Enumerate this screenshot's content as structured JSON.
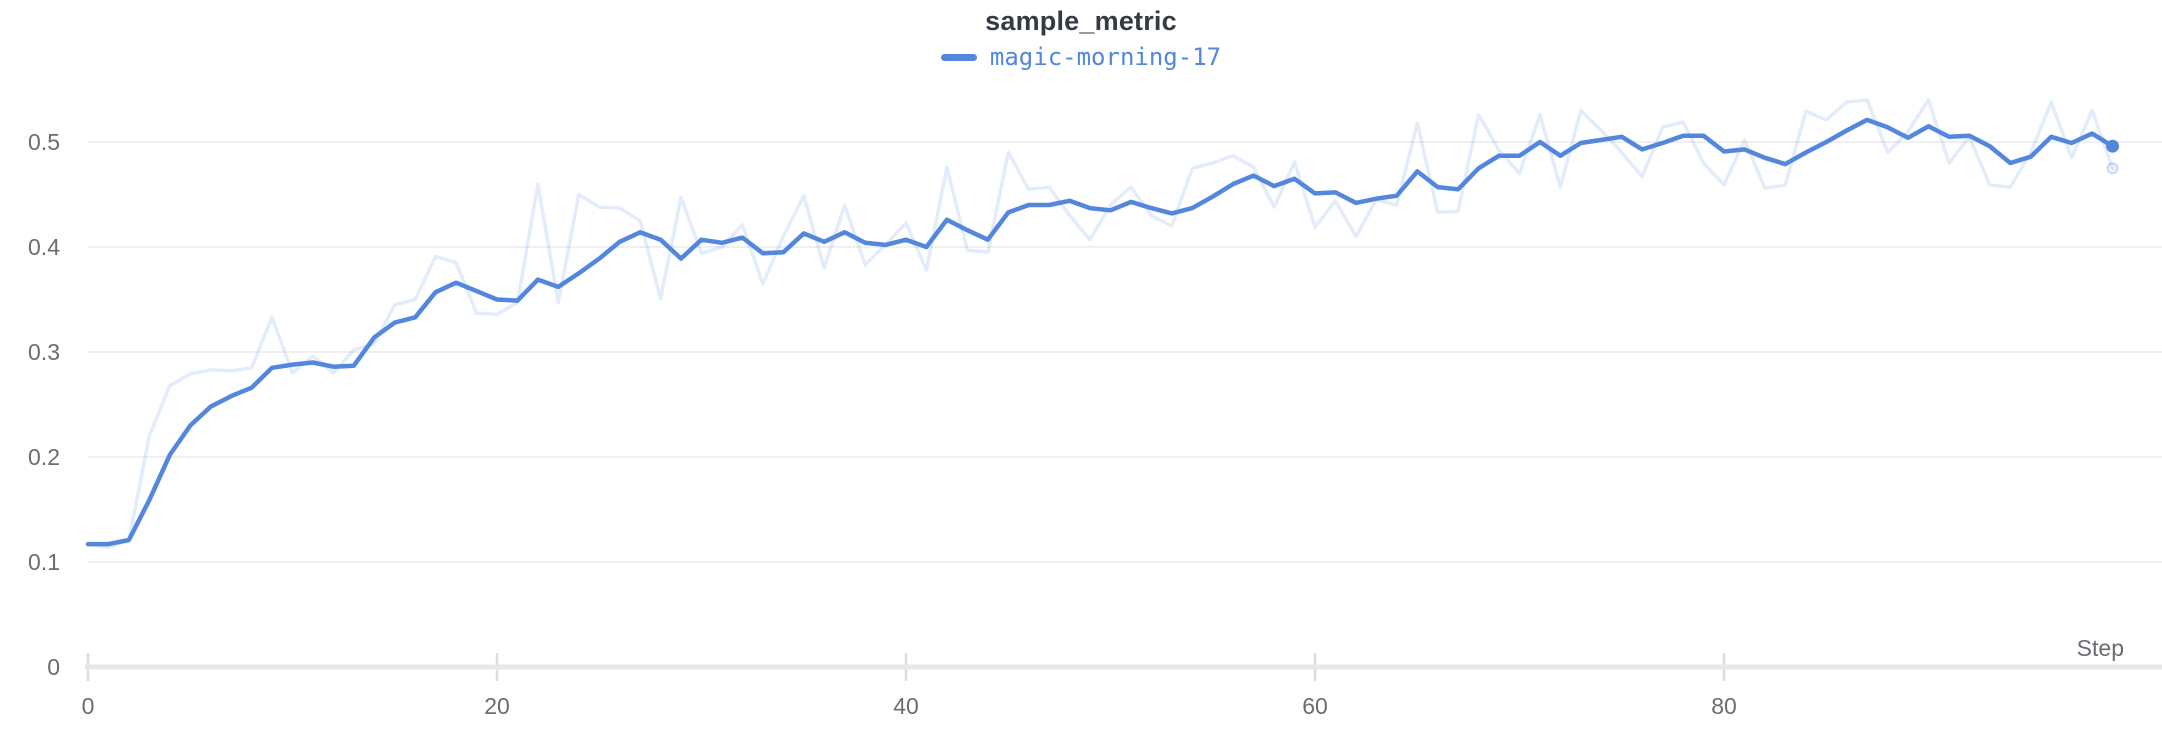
{
  "header": {
    "title": "sample_metric"
  },
  "legend": {
    "run_name": "magic-morning-17"
  },
  "colors": {
    "accent": "#5387DD",
    "raw_line_opacity": 0.16,
    "title_text": "#363A43",
    "axis_label_text": "#6B6C72",
    "gridline": "#F0F0F2",
    "axis_line": "#E6E7E9",
    "tick_mark": "#DCDDE2",
    "background": "#FFFFFF"
  },
  "chart_data": {
    "type": "line",
    "title": "sample_metric",
    "xlabel": "Step",
    "ylabel": "",
    "legend_position": "top-center",
    "grid": "horizontal-only",
    "xlim": [
      0,
      100.5
    ],
    "ylim": [
      0,
      0.56
    ],
    "x_start": 0,
    "x_increment": 1,
    "x_ticks": [
      0,
      20,
      40,
      60,
      80
    ],
    "x_tick_labels": [
      "0",
      "20",
      "40",
      "60",
      "80"
    ],
    "y_ticks": [
      0,
      0.1,
      0.2,
      0.3,
      0.4,
      0.5
    ],
    "y_tick_labels": [
      "0",
      "0.1",
      "0.2",
      "0.3",
      "0.4",
      "0.5"
    ],
    "series": [
      {
        "name": "magic-morning-17",
        "color": "#5387DD",
        "smoothed": [
          0.117,
          0.117,
          0.121,
          0.159,
          0.202,
          0.23,
          0.248,
          0.258,
          0.266,
          0.285,
          0.288,
          0.29,
          0.286,
          0.287,
          0.314,
          0.328,
          0.333,
          0.357,
          0.366,
          0.358,
          0.35,
          0.349,
          0.369,
          0.362,
          0.375,
          0.389,
          0.405,
          0.414,
          0.407,
          0.389,
          0.407,
          0.404,
          0.409,
          0.394,
          0.395,
          0.413,
          0.405,
          0.414,
          0.404,
          0.402,
          0.407,
          0.4,
          0.426,
          0.416,
          0.407,
          0.433,
          0.44,
          0.44,
          0.444,
          0.437,
          0.435,
          0.443,
          0.437,
          0.432,
          0.437,
          0.448,
          0.46,
          0.468,
          0.458,
          0.465,
          0.451,
          0.452,
          0.442,
          0.446,
          0.449,
          0.472,
          0.457,
          0.455,
          0.475,
          0.487,
          0.487,
          0.5,
          0.487,
          0.499,
          0.502,
          0.505,
          0.493,
          0.499,
          0.506,
          0.506,
          0.491,
          0.493,
          0.485,
          0.479,
          0.49,
          0.5,
          0.511,
          0.521,
          0.514,
          0.504,
          0.515,
          0.505,
          0.506,
          0.496,
          0.48,
          0.486,
          0.505,
          0.499,
          0.508,
          0.496
        ],
        "raw": [
          0.117,
          0.114,
          0.121,
          0.22,
          0.268,
          0.279,
          0.283,
          0.282,
          0.285,
          0.333,
          0.28,
          0.296,
          0.28,
          0.302,
          0.308,
          0.345,
          0.35,
          0.391,
          0.385,
          0.337,
          0.336,
          0.347,
          0.46,
          0.347,
          0.45,
          0.438,
          0.437,
          0.425,
          0.351,
          0.447,
          0.394,
          0.4,
          0.421,
          0.365,
          0.41,
          0.449,
          0.38,
          0.44,
          0.383,
          0.402,
          0.423,
          0.378,
          0.476,
          0.397,
          0.395,
          0.49,
          0.455,
          0.457,
          0.43,
          0.407,
          0.44,
          0.457,
          0.43,
          0.42,
          0.475,
          0.48,
          0.487,
          0.476,
          0.438,
          0.481,
          0.419,
          0.444,
          0.41,
          0.445,
          0.44,
          0.518,
          0.433,
          0.434,
          0.526,
          0.492,
          0.47,
          0.526,
          0.457,
          0.53,
          0.511,
          0.49,
          0.467,
          0.514,
          0.519,
          0.48,
          0.459,
          0.502,
          0.456,
          0.459,
          0.529,
          0.521,
          0.538,
          0.54,
          0.49,
          0.51,
          0.54,
          0.48,
          0.505,
          0.459,
          0.457,
          0.49,
          0.538,
          0.485,
          0.53,
          0.475
        ]
      }
    ]
  }
}
